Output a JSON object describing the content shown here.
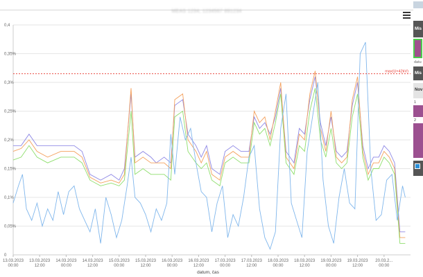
{
  "window": {
    "title": "MEAS 1234, 1234567 891234"
  },
  "sidebar": {
    "panel1_label": "Mis",
    "date_label": "datu",
    "panel2_label": "Mis",
    "panel3_label": "Nov",
    "item1": "1",
    "item2": "2"
  },
  "colors": {
    "blue": "#7fb6ec",
    "orange": "#f4a05c",
    "purple": "#8d87e5",
    "green": "#8ede6c",
    "limit": "#e8382f"
  },
  "chart_data": {
    "type": "line",
    "title": "",
    "xlabel": "datum, čas",
    "ylabel": "",
    "ylim": [
      0,
      0.004
    ],
    "y_ticks": [
      {
        "v": 0,
        "label": "0"
      },
      {
        "v": 0.0005,
        "label": "0,05%"
      },
      {
        "v": 0.001,
        "label": "0,1%"
      },
      {
        "v": 0.0015,
        "label": "0,15%"
      },
      {
        "v": 0.002,
        "label": "0,2%"
      },
      {
        "v": 0.0025,
        "label": "0,25%"
      },
      {
        "v": 0.003,
        "label": "0,3%"
      },
      {
        "v": 0.0035,
        "label": "0,35%"
      },
      {
        "v": 0.004,
        "label": "0,4"
      }
    ],
    "x_range": [
      0,
      15
    ],
    "x_ticks": [
      {
        "d": "13.03.2023",
        "t": "00:00"
      },
      {
        "d": "13.03.2023",
        "t": "12:00"
      },
      {
        "d": "14.03.2023",
        "t": "00:00"
      },
      {
        "d": "14.03.2023",
        "t": "12:00"
      },
      {
        "d": "15.03.2023",
        "t": "00:00"
      },
      {
        "d": "15.03.2023",
        "t": "12:00"
      },
      {
        "d": "16.03.2023",
        "t": "00:00"
      },
      {
        "d": "16.03.2023",
        "t": "12:00"
      },
      {
        "d": "17.03.2023",
        "t": "00:00"
      },
      {
        "d": "17.03.2023",
        "t": "12:00"
      },
      {
        "d": "18.03.2023",
        "t": "00:00"
      },
      {
        "d": "18.03.2023",
        "t": "12:00"
      },
      {
        "d": "19.03.2023",
        "t": "00:00"
      },
      {
        "d": "19.03.2023",
        "t": "12:00"
      },
      {
        "d": "20.03.2...",
        "t": "00:00"
      }
    ],
    "limit_line": {
      "value": 0.00315,
      "label": "max(U+42kV)"
    },
    "series": [
      {
        "name": "",
        "color": "#8d87e5",
        "points": [
          [
            0,
            0.0019
          ],
          [
            0.3,
            0.0019
          ],
          [
            0.6,
            0.0021
          ],
          [
            0.9,
            0.0019
          ],
          [
            1.3,
            0.0019
          ],
          [
            1.8,
            0.0019
          ],
          [
            2.3,
            0.0019
          ],
          [
            2.6,
            0.0018
          ],
          [
            2.9,
            0.0014
          ],
          [
            3.3,
            0.0013
          ],
          [
            3.7,
            0.0014
          ],
          [
            4.0,
            0.0013
          ],
          [
            4.2,
            0.0015
          ],
          [
            4.45,
            0.0028
          ],
          [
            4.6,
            0.0017
          ],
          [
            4.9,
            0.0018
          ],
          [
            5.2,
            0.0017
          ],
          [
            5.4,
            0.0016
          ],
          [
            5.7,
            0.0017
          ],
          [
            5.95,
            0.0016
          ],
          [
            6.1,
            0.0026
          ],
          [
            6.4,
            0.0027
          ],
          [
            6.6,
            0.0021
          ],
          [
            6.9,
            0.0019
          ],
          [
            7.1,
            0.0017
          ],
          [
            7.3,
            0.0019
          ],
          [
            7.5,
            0.0015
          ],
          [
            7.8,
            0.0014
          ],
          [
            8.0,
            0.0018
          ],
          [
            8.3,
            0.0019
          ],
          [
            8.6,
            0.0018
          ],
          [
            8.9,
            0.0018
          ],
          [
            9.1,
            0.0024
          ],
          [
            9.3,
            0.0022
          ],
          [
            9.5,
            0.0023
          ],
          [
            9.7,
            0.0021
          ],
          [
            9.9,
            0.0024
          ],
          [
            10.1,
            0.0029
          ],
          [
            10.3,
            0.0018
          ],
          [
            10.6,
            0.0016
          ],
          [
            10.8,
            0.0022
          ],
          [
            11.0,
            0.0021
          ],
          [
            11.2,
            0.0027
          ],
          [
            11.4,
            0.0031
          ],
          [
            11.6,
            0.0023
          ],
          [
            11.8,
            0.0019
          ],
          [
            12.0,
            0.0024
          ],
          [
            12.2,
            0.0018
          ],
          [
            12.4,
            0.0017
          ],
          [
            12.6,
            0.0018
          ],
          [
            12.8,
            0.0026
          ],
          [
            13.0,
            0.003
          ],
          [
            13.2,
            0.0019
          ],
          [
            13.4,
            0.0015
          ],
          [
            13.6,
            0.0017
          ],
          [
            13.8,
            0.0017
          ],
          [
            14.0,
            0.0019
          ],
          [
            14.2,
            0.0018
          ],
          [
            14.4,
            0.0016
          ],
          [
            14.6,
            0.0004
          ],
          [
            14.8,
            0.0004
          ]
        ]
      },
      {
        "name": "",
        "color": "#f4a05c",
        "points": [
          [
            0,
            0.0018
          ],
          [
            0.3,
            0.00185
          ],
          [
            0.6,
            0.002
          ],
          [
            0.9,
            0.0018
          ],
          [
            1.3,
            0.0017
          ],
          [
            1.8,
            0.0018
          ],
          [
            2.3,
            0.0018
          ],
          [
            2.6,
            0.0017
          ],
          [
            2.9,
            0.00135
          ],
          [
            3.3,
            0.00125
          ],
          [
            3.7,
            0.0013
          ],
          [
            4.0,
            0.00125
          ],
          [
            4.2,
            0.0014
          ],
          [
            4.45,
            0.0029
          ],
          [
            4.6,
            0.0016
          ],
          [
            4.9,
            0.0017
          ],
          [
            5.2,
            0.0016
          ],
          [
            5.4,
            0.0016
          ],
          [
            5.7,
            0.0016
          ],
          [
            5.95,
            0.0015
          ],
          [
            6.1,
            0.0027
          ],
          [
            6.4,
            0.0028
          ],
          [
            6.6,
            0.002
          ],
          [
            6.9,
            0.0018
          ],
          [
            7.1,
            0.0016
          ],
          [
            7.3,
            0.0018
          ],
          [
            7.5,
            0.0014
          ],
          [
            7.8,
            0.0013
          ],
          [
            8.0,
            0.0017
          ],
          [
            8.3,
            0.0018
          ],
          [
            8.6,
            0.0017
          ],
          [
            8.9,
            0.0017
          ],
          [
            9.1,
            0.0025
          ],
          [
            9.3,
            0.0023
          ],
          [
            9.5,
            0.0024
          ],
          [
            9.7,
            0.002
          ],
          [
            9.9,
            0.0025
          ],
          [
            10.1,
            0.003
          ],
          [
            10.3,
            0.0017
          ],
          [
            10.6,
            0.0015
          ],
          [
            10.8,
            0.0021
          ],
          [
            11.0,
            0.002
          ],
          [
            11.2,
            0.0028
          ],
          [
            11.4,
            0.0032
          ],
          [
            11.6,
            0.0022
          ],
          [
            11.8,
            0.0018
          ],
          [
            12.0,
            0.0025
          ],
          [
            12.2,
            0.0017
          ],
          [
            12.4,
            0.0016
          ],
          [
            12.6,
            0.0017
          ],
          [
            12.8,
            0.0027
          ],
          [
            13.0,
            0.0031
          ],
          [
            13.2,
            0.0018
          ],
          [
            13.4,
            0.0014
          ],
          [
            13.6,
            0.0016
          ],
          [
            13.8,
            0.0016
          ],
          [
            14.0,
            0.0018
          ],
          [
            14.2,
            0.0017
          ],
          [
            14.4,
            0.0015
          ],
          [
            14.6,
            0.0003
          ],
          [
            14.8,
            0.0003
          ]
        ]
      },
      {
        "name": "",
        "color": "#8ede6c",
        "points": [
          [
            0,
            0.00165
          ],
          [
            0.3,
            0.0017
          ],
          [
            0.6,
            0.0019
          ],
          [
            0.9,
            0.0017
          ],
          [
            1.3,
            0.0016
          ],
          [
            1.8,
            0.0017
          ],
          [
            2.3,
            0.0017
          ],
          [
            2.6,
            0.0016
          ],
          [
            2.9,
            0.0013
          ],
          [
            3.3,
            0.0012
          ],
          [
            3.7,
            0.00125
          ],
          [
            4.0,
            0.0012
          ],
          [
            4.2,
            0.0013
          ],
          [
            4.45,
            0.0025
          ],
          [
            4.6,
            0.0014
          ],
          [
            4.9,
            0.0015
          ],
          [
            5.2,
            0.0014
          ],
          [
            5.4,
            0.0014
          ],
          [
            5.7,
            0.0014
          ],
          [
            5.95,
            0.0013
          ],
          [
            6.1,
            0.0024
          ],
          [
            6.4,
            0.0025
          ],
          [
            6.6,
            0.0018
          ],
          [
            6.9,
            0.0016
          ],
          [
            7.1,
            0.0015
          ],
          [
            7.3,
            0.0016
          ],
          [
            7.5,
            0.0013
          ],
          [
            7.8,
            0.0012
          ],
          [
            8.0,
            0.0016
          ],
          [
            8.3,
            0.0017
          ],
          [
            8.6,
            0.0016
          ],
          [
            8.9,
            0.0016
          ],
          [
            9.1,
            0.0023
          ],
          [
            9.3,
            0.0021
          ],
          [
            9.5,
            0.0022
          ],
          [
            9.7,
            0.0019
          ],
          [
            9.9,
            0.0023
          ],
          [
            10.1,
            0.0028
          ],
          [
            10.3,
            0.0016
          ],
          [
            10.6,
            0.0014
          ],
          [
            10.8,
            0.0019
          ],
          [
            11.0,
            0.0018
          ],
          [
            11.2,
            0.0025
          ],
          [
            11.4,
            0.0029
          ],
          [
            11.6,
            0.002
          ],
          [
            11.8,
            0.0017
          ],
          [
            12.0,
            0.0022
          ],
          [
            12.2,
            0.0016
          ],
          [
            12.4,
            0.0015
          ],
          [
            12.6,
            0.0016
          ],
          [
            12.8,
            0.0024
          ],
          [
            13.0,
            0.0028
          ],
          [
            13.2,
            0.0017
          ],
          [
            13.4,
            0.0013
          ],
          [
            13.6,
            0.0015
          ],
          [
            13.8,
            0.0015
          ],
          [
            14.0,
            0.0017
          ],
          [
            14.2,
            0.0016
          ],
          [
            14.4,
            0.0014
          ],
          [
            14.6,
            0.0002
          ],
          [
            14.8,
            0.0002
          ]
        ]
      },
      {
        "name": "",
        "color": "#7fb6ec",
        "points": [
          [
            0,
            0.0009
          ],
          [
            0.2,
            0.0012
          ],
          [
            0.35,
            0.0014
          ],
          [
            0.5,
            0.0008
          ],
          [
            0.7,
            0.0006
          ],
          [
            0.9,
            0.0009
          ],
          [
            1.1,
            0.0005
          ],
          [
            1.3,
            0.0008
          ],
          [
            1.5,
            0.0006
          ],
          [
            1.7,
            0.0011
          ],
          [
            1.9,
            0.0007
          ],
          [
            2.1,
            0.0011
          ],
          [
            2.3,
            0.0012
          ],
          [
            2.5,
            0.0008
          ],
          [
            2.7,
            0.0006
          ],
          [
            2.9,
            0.0004
          ],
          [
            3.1,
            0.0008
          ],
          [
            3.3,
            0.0002
          ],
          [
            3.5,
            0.001
          ],
          [
            3.7,
            0.0007
          ],
          [
            3.9,
            0.0003
          ],
          [
            4.1,
            0.0006
          ],
          [
            4.3,
            0.0012
          ],
          [
            4.45,
            0.0017
          ],
          [
            4.6,
            0.001
          ],
          [
            4.8,
            0.0009
          ],
          [
            5.0,
            0.0007
          ],
          [
            5.2,
            0.0004
          ],
          [
            5.4,
            0.0008
          ],
          [
            5.6,
            0.0006
          ],
          [
            5.8,
            0.0009
          ],
          [
            5.95,
            0.0021
          ],
          [
            6.1,
            0.0014
          ],
          [
            6.3,
            0.0024
          ],
          [
            6.5,
            0.002
          ],
          [
            6.7,
            0.0022
          ],
          [
            6.9,
            0.0016
          ],
          [
            7.1,
            0.0011
          ],
          [
            7.3,
            0.001
          ],
          [
            7.5,
            0.0004
          ],
          [
            7.7,
            0.0009
          ],
          [
            7.9,
            0.0012
          ],
          [
            8.1,
            0.0003
          ],
          [
            8.3,
            0.0007
          ],
          [
            8.5,
            0.0005
          ],
          [
            8.7,
            0.001
          ],
          [
            8.9,
            0.0017
          ],
          [
            9.1,
            0.0019
          ],
          [
            9.3,
            0.0008
          ],
          [
            9.5,
            0.0003
          ],
          [
            9.7,
            0.0001
          ],
          [
            9.9,
            0.0004
          ],
          [
            10.1,
            0.0022
          ],
          [
            10.3,
            0.0028
          ],
          [
            10.5,
            0.0009
          ],
          [
            10.7,
            0.0006
          ],
          [
            10.9,
            0.0003
          ],
          [
            11.1,
            0.0018
          ],
          [
            11.3,
            0.0024
          ],
          [
            11.5,
            0.003
          ],
          [
            11.7,
            0.0013
          ],
          [
            11.9,
            0.0005
          ],
          [
            12.1,
            0.0002
          ],
          [
            12.3,
            0.001
          ],
          [
            12.5,
            0.0015
          ],
          [
            12.7,
            0.0009
          ],
          [
            12.9,
            0.0008
          ],
          [
            13.1,
            0.0035
          ],
          [
            13.3,
            0.0037
          ],
          [
            13.5,
            0.0015
          ],
          [
            13.7,
            0.0006
          ],
          [
            13.9,
            0.0007
          ],
          [
            14.1,
            0.0013
          ],
          [
            14.3,
            0.0014
          ],
          [
            14.5,
            0.0006
          ],
          [
            14.7,
            0.0012
          ],
          [
            14.8,
            0.001
          ]
        ]
      }
    ]
  }
}
